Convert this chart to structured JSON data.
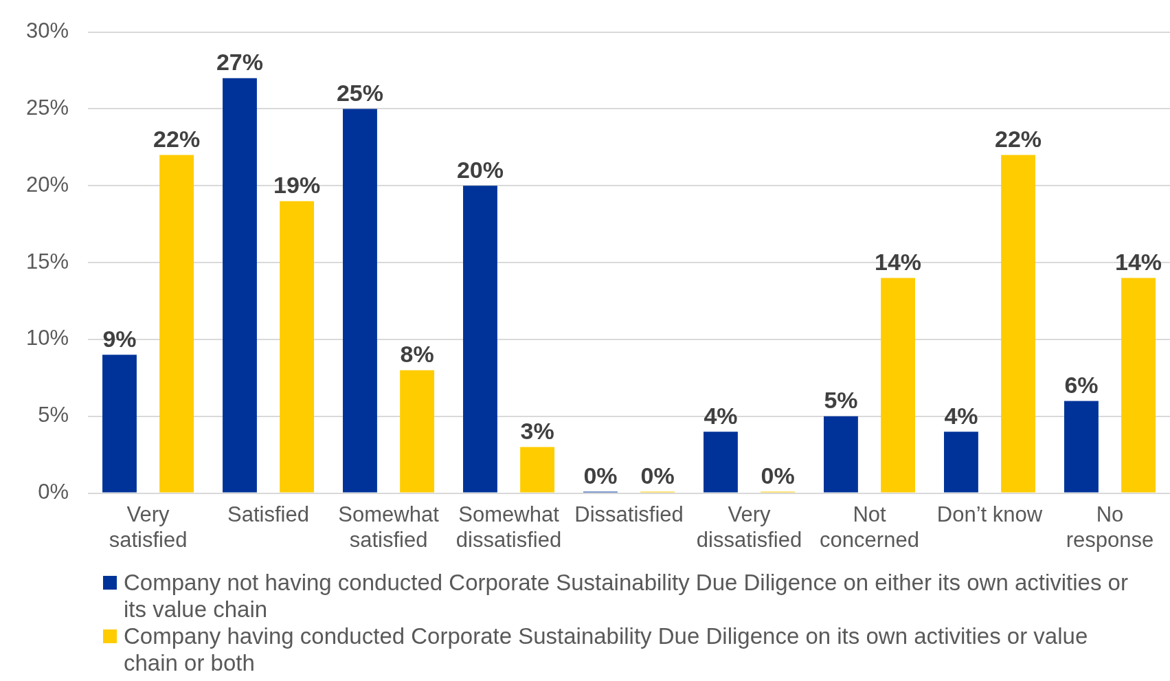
{
  "chart_data": {
    "type": "bar",
    "categories": [
      "Very satisfied",
      "Satisfied",
      "Somewhat satisfied",
      "Somewhat dissatisfied",
      "Dissatisfied",
      "Very dissatisfied",
      "Not concerned",
      "Don’t know",
      "No response"
    ],
    "series": [
      {
        "name": "Company not having conducted Corporate Sustainability Due Diligence on either its own activities or its value chain",
        "color": "#003399",
        "values": [
          9,
          27,
          25,
          20,
          0,
          4,
          5,
          4,
          6
        ],
        "value_labels": [
          "9%",
          "27%",
          "25%",
          "20%",
          "0%",
          "4%",
          "5%",
          "4%",
          "6%"
        ]
      },
      {
        "name": "Company having conducted Corporate Sustainability Due Diligence on its own activities or value chain or both",
        "color": "#ffcc00",
        "values": [
          22,
          19,
          8,
          3,
          0,
          0,
          14,
          22,
          14
        ],
        "value_labels": [
          "22%",
          "19%",
          "8%",
          "3%",
          "0%",
          "0%",
          "14%",
          "22%",
          "14%"
        ]
      }
    ],
    "ylim": [
      0,
      30
    ],
    "yticks": [
      {
        "value": 0,
        "label": "0%"
      },
      {
        "value": 5,
        "label": "5%"
      },
      {
        "value": 10,
        "label": "10%"
      },
      {
        "value": 15,
        "label": "15%"
      },
      {
        "value": 20,
        "label": "20%"
      },
      {
        "value": 25,
        "label": "25%"
      },
      {
        "value": 30,
        "label": "30%"
      }
    ],
    "grid": "y",
    "legend": "bottom"
  }
}
